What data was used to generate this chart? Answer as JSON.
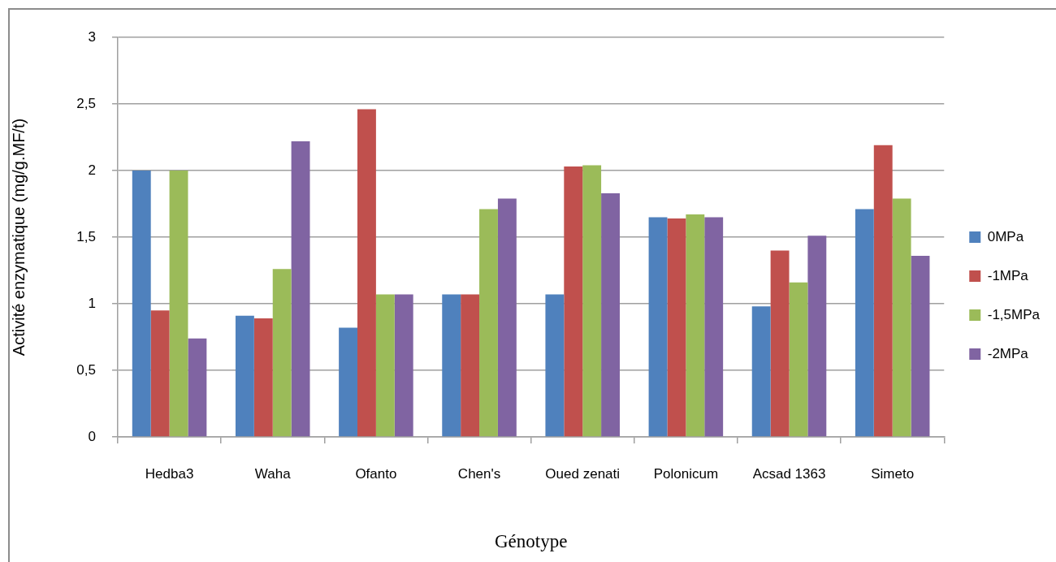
{
  "chart_data": {
    "type": "bar",
    "xlabel": "Génotype",
    "ylabel": "Activité enzymatique (mg/g.MF/t)",
    "categories": [
      "Hedba3",
      "Waha",
      "Ofanto",
      "Chen's",
      "Oued zenati",
      "Polonicum",
      "Acsad 1363",
      "Simeto"
    ],
    "series": [
      {
        "name": "0MPa",
        "color": "#4f81bd",
        "values": [
          2.0,
          0.91,
          0.82,
          1.07,
          1.07,
          1.65,
          0.98,
          1.71
        ]
      },
      {
        "name": "-1MPa",
        "color": "#c0504d",
        "values": [
          0.95,
          0.89,
          2.46,
          1.07,
          2.03,
          1.64,
          1.4,
          2.19
        ]
      },
      {
        "name": "-1,5MPa",
        "color": "#9bbb59",
        "values": [
          2.0,
          1.26,
          1.07,
          1.71,
          2.04,
          1.67,
          1.16,
          1.79
        ]
      },
      {
        "name": "-2MPa",
        "color": "#8064a2",
        "values": [
          0.74,
          2.22,
          1.07,
          1.79,
          1.83,
          1.65,
          1.51,
          1.36
        ]
      }
    ],
    "ylim": [
      0,
      3
    ],
    "yticks": [
      0,
      {
        "value": 0.5,
        "label": "0,5"
      },
      1,
      {
        "value": 1.5,
        "label": "1,5"
      },
      2,
      {
        "value": 2.5,
        "label": "2,5"
      },
      3
    ],
    "grid": "y",
    "legend": "right"
  }
}
